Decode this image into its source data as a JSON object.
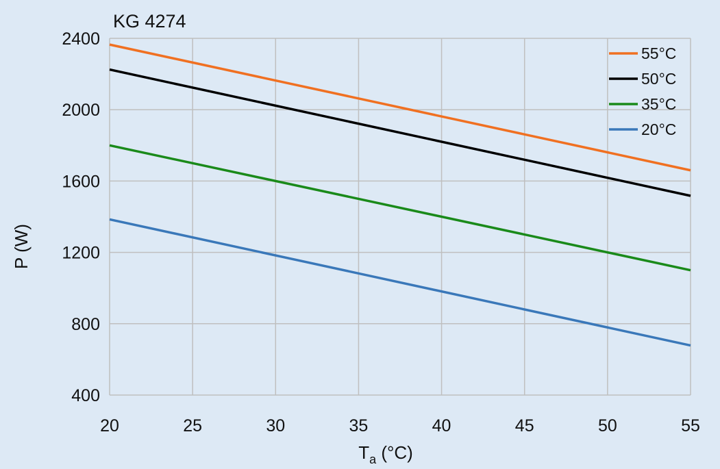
{
  "chart_data": {
    "type": "line",
    "title": "KG 4274",
    "xlabel": "T",
    "xlabel_sub": "a",
    "xlabel_unit": " (°C)",
    "ylabel": "P (W)",
    "xlim": [
      20,
      55
    ],
    "ylim": [
      400,
      2400
    ],
    "x_ticks": [
      20,
      25,
      30,
      35,
      40,
      45,
      50,
      55
    ],
    "y_ticks": [
      400,
      800,
      1200,
      1600,
      2000,
      2400
    ],
    "grid": true,
    "legend_position": "top-right",
    "background_color": "#dde9f5",
    "grid_color": "#bfbfbf",
    "series": [
      {
        "name": "55°C",
        "color": "#f07021",
        "x": [
          20,
          55
        ],
        "y": [
          2365,
          1660
        ]
      },
      {
        "name": "50°C",
        "color": "#000000",
        "x": [
          20,
          55
        ],
        "y": [
          2225,
          1517
        ]
      },
      {
        "name": "35°C",
        "color": "#1a8a1a",
        "x": [
          20,
          55
        ],
        "y": [
          1800,
          1100
        ]
      },
      {
        "name": "20°C",
        "color": "#3a78b9",
        "x": [
          20,
          55
        ],
        "y": [
          1385,
          678
        ]
      }
    ]
  }
}
